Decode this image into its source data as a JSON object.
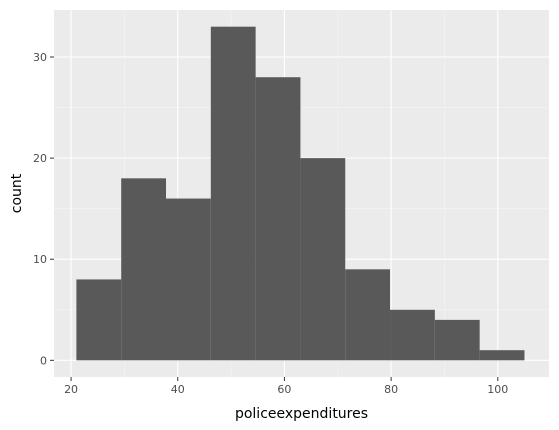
{
  "chart_data": {
    "type": "bar",
    "title": "",
    "xlabel": "policeexpenditures",
    "ylabel": "count",
    "xlim": [
      16.8,
      109.6
    ],
    "ylim": [
      -1.65,
      34.65
    ],
    "x_ticks": [
      20,
      40,
      60,
      80,
      100
    ],
    "y_ticks": [
      0,
      10,
      20,
      30
    ],
    "grid": true,
    "bins": [
      {
        "x0": 21.0,
        "x1": 29.4,
        "count": 8
      },
      {
        "x0": 29.4,
        "x1": 37.8,
        "count": 18
      },
      {
        "x0": 37.8,
        "x1": 46.2,
        "count": 16
      },
      {
        "x0": 46.2,
        "x1": 54.6,
        "count": 33
      },
      {
        "x0": 54.6,
        "x1": 63.0,
        "count": 28
      },
      {
        "x0": 63.0,
        "x1": 71.4,
        "count": 20
      },
      {
        "x0": 71.4,
        "x1": 79.8,
        "count": 9
      },
      {
        "x0": 79.8,
        "x1": 88.2,
        "count": 5
      },
      {
        "x0": 88.2,
        "x1": 96.6,
        "count": 4
      },
      {
        "x0": 96.6,
        "x1": 105.0,
        "count": 1
      }
    ],
    "colors": {
      "panel": "#ebebeb",
      "grid_major": "#ffffff",
      "bar": "#595959",
      "tick": "#333333",
      "tick_text": "#4d4d4d"
    }
  }
}
